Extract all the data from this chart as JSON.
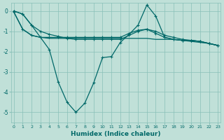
{
  "xlabel": "Humidex (Indice chaleur)",
  "bg_color": "#c0e0d8",
  "grid_color": "#88c0b8",
  "line_color": "#006868",
  "x": [
    0,
    1,
    2,
    3,
    4,
    5,
    6,
    7,
    8,
    9,
    10,
    11,
    12,
    13,
    14,
    15,
    16,
    17,
    18,
    19,
    20,
    21,
    22,
    23
  ],
  "line_dip": [
    0.0,
    -0.15,
    -0.7,
    -1.3,
    -1.9,
    -3.5,
    -4.5,
    -5.0,
    -4.55,
    -3.55,
    -2.3,
    -2.25,
    -1.55,
    -1.15,
    -0.7,
    0.3,
    -0.25,
    -1.3,
    -1.4,
    -1.45,
    -1.45,
    -1.5,
    -1.6,
    -1.7
  ],
  "line_diag": [
    0.0,
    -0.15,
    -0.7,
    -1.0,
    -1.15,
    -1.25,
    -1.35,
    -1.4,
    -1.4,
    -1.4,
    -1.4,
    -1.4,
    -1.4,
    -1.2,
    -1.0,
    -0.9,
    -1.1,
    -1.3,
    -1.4,
    -1.45,
    -1.45,
    -1.5,
    -1.6,
    -1.7
  ],
  "line_flat1": [
    -0.05,
    -0.9,
    -1.2,
    -1.3,
    -1.35,
    -1.35,
    -1.35,
    -1.35,
    -1.35,
    -1.35,
    -1.35,
    -1.35,
    -1.35,
    -1.35,
    -1.35,
    -1.35,
    -1.4,
    -1.4,
    -1.4,
    -1.45,
    -1.5,
    -1.55,
    -1.6,
    -1.7
  ],
  "line_flat2": [
    -0.05,
    -0.9,
    -1.2,
    -1.3,
    -1.3,
    -1.3,
    -1.3,
    -1.3,
    -1.3,
    -1.3,
    -1.3,
    -1.3,
    -1.3,
    -1.1,
    -0.95,
    -0.9,
    -1.0,
    -1.2,
    -1.3,
    -1.4,
    -1.45,
    -1.5,
    -1.6,
    -1.7
  ],
  "ylim": [
    -5.5,
    0.4
  ],
  "xlim": [
    -0.3,
    23.3
  ],
  "yticks": [
    0,
    -1,
    -2,
    -3,
    -4,
    -5
  ],
  "xticks": [
    0,
    1,
    2,
    3,
    4,
    5,
    6,
    7,
    8,
    9,
    10,
    11,
    12,
    13,
    14,
    15,
    16,
    17,
    18,
    19,
    20,
    21,
    22,
    23
  ]
}
